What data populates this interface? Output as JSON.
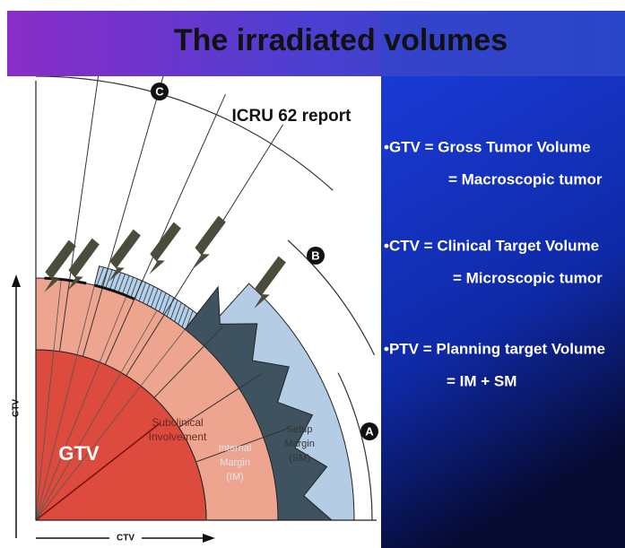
{
  "title": "The irradiated volumes",
  "diagram": {
    "report": "ICRU 62 report",
    "markers": [
      "C",
      "B",
      "A"
    ],
    "regions": {
      "gtv": [
        "GTV"
      ],
      "subclinical": [
        "Subclinical",
        "Involvement"
      ],
      "internal": [
        "Internal",
        "Margin",
        "(IM)"
      ],
      "setup": [
        "Setup",
        "Margin",
        "(SM)"
      ]
    },
    "axis_vertical": "CTV",
    "axis_horizontal": "CTV"
  },
  "definitions": [
    [
      "•GTV = Gross Tumor Volume",
      "= Macroscopic tumor"
    ],
    [
      "•CTV = Clinical Target Volume",
      "= Microscopic tumor"
    ],
    [
      "•PTV = Planning target Volume",
      "= IM + SM"
    ]
  ]
}
